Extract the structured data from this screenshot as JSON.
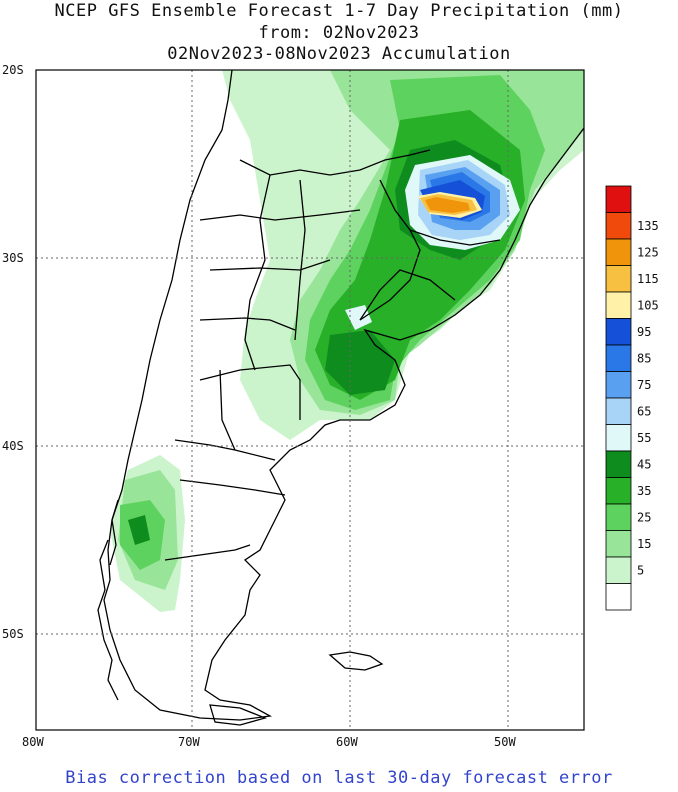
{
  "title": {
    "line1": "NCEP GFS Ensemble Forecast 1-7 Day Precipitation (mm)",
    "line2": "from: 02Nov2023",
    "line3": "02Nov2023-08Nov2023 Accumulation"
  },
  "map": {
    "lat_labels": [
      "20S",
      "30S",
      "40S",
      "50S"
    ],
    "lon_labels": [
      "80W",
      "70W",
      "60W",
      "50W"
    ],
    "grid": "dotted",
    "region": "Southern South America"
  },
  "legend": {
    "placement": "right",
    "levels": [
      {
        "label": "",
        "color": "#e01010"
      },
      {
        "label": "135",
        "color": "#f04a0c"
      },
      {
        "label": "125",
        "color": "#f0940c"
      },
      {
        "label": "115",
        "color": "#f8c040"
      },
      {
        "label": "105",
        "color": "#fff2a8"
      },
      {
        "label": "95",
        "color": "#1450d8"
      },
      {
        "label": "85",
        "color": "#2a78e8"
      },
      {
        "label": "75",
        "color": "#5aa0f0"
      },
      {
        "label": "65",
        "color": "#a8d4f8"
      },
      {
        "label": "55",
        "color": "#e0f8f8"
      },
      {
        "label": "45",
        "color": "#0e8c1e"
      },
      {
        "label": "35",
        "color": "#28b028"
      },
      {
        "label": "25",
        "color": "#5ed25e"
      },
      {
        "label": "15",
        "color": "#98e498"
      },
      {
        "label": "5",
        "color": "#ccf4cc"
      },
      {
        "label": "",
        "color": "#ffffff"
      }
    ]
  },
  "footer": "Bias correction based on last 30-day forecast error"
}
